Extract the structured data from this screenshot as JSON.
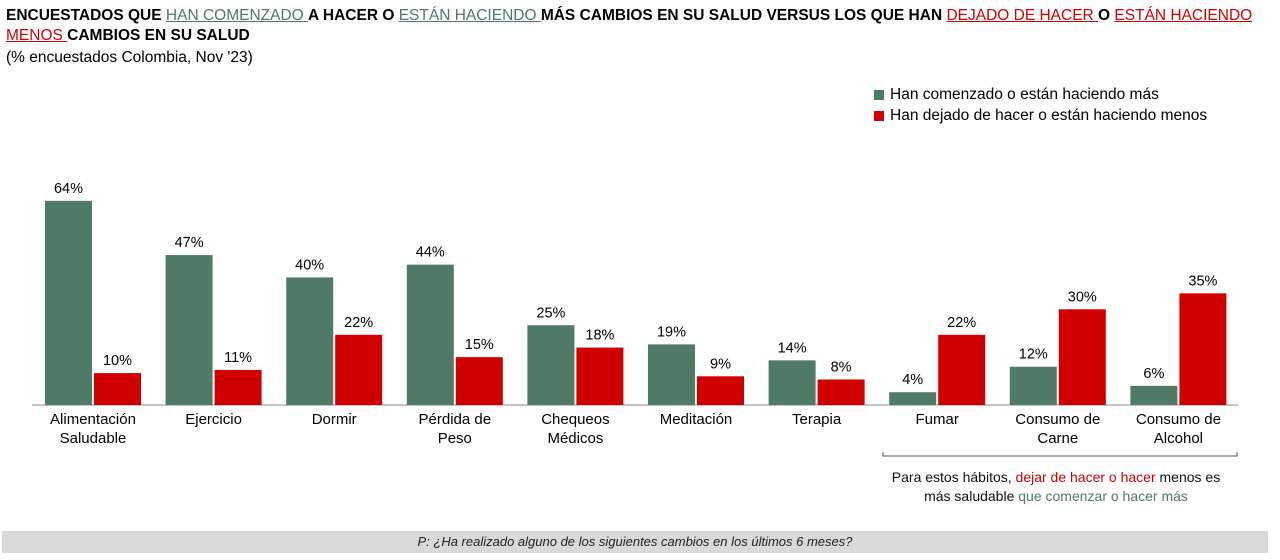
{
  "title_segments": [
    {
      "text": "ENCUESTADOS QUE ",
      "style": "b"
    },
    {
      "text": "HAN COMENZADO ",
      "style": "g"
    },
    {
      "text": "A HACER O ",
      "style": "b"
    },
    {
      "text": "ESTÁN HACIENDO ",
      "style": "g"
    },
    {
      "text": "MÁS CAMBIOS EN SU SALUD VERSUS LOS QUE HAN ",
      "style": "b"
    },
    {
      "text": "DEJADO DE HACER ",
      "style": "r"
    },
    {
      "text": "O ",
      "style": "b"
    },
    {
      "text": "ESTÁN HACIENDO MENOS ",
      "style": "r"
    },
    {
      "text": "CAMBIOS EN SU SALUD",
      "style": "b"
    }
  ],
  "subtitle": "(% encuestados Colombia, Nov '23)",
  "note": {
    "a": "Para estos hábitos, ",
    "b": "dejar de hacer o hacer",
    "c": " menos es más saludable ",
    "d": "que comenzar o hacer más"
  },
  "footer": "P: ¿Ha realizado alguno de los siguientes cambios en los últimos 6 meses?",
  "chart_data": {
    "type": "bar",
    "categories": [
      [
        "Alimentación",
        "Saludable"
      ],
      [
        "Ejercicio"
      ],
      [
        "Dormir"
      ],
      [
        "Pérdida de",
        "Peso"
      ],
      [
        "Chequeos",
        "Médicos"
      ],
      [
        "Meditación"
      ],
      [
        "Terapia"
      ],
      [
        "Fumar"
      ],
      [
        "Consumo de",
        "Carne"
      ],
      [
        "Consumo de",
        "Alcohol"
      ]
    ],
    "series": [
      {
        "name": "Han comenzado o están haciendo más",
        "color": "#4e7a66",
        "values": [
          64,
          47,
          40,
          44,
          25,
          19,
          14,
          4,
          12,
          6
        ]
      },
      {
        "name": "Han dejado de hacer o están haciendo menos",
        "color": "#d00000",
        "values": [
          10,
          11,
          22,
          15,
          18,
          9,
          8,
          22,
          30,
          35
        ]
      }
    ],
    "unit": "%",
    "ylim": [
      0,
      70
    ],
    "grid": false,
    "legend": "top-right"
  }
}
